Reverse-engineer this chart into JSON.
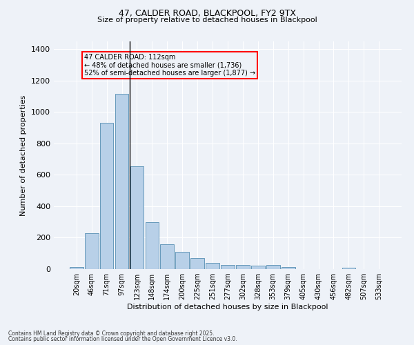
{
  "title1": "47, CALDER ROAD, BLACKPOOL, FY2 9TX",
  "title2": "Size of property relative to detached houses in Blackpool",
  "xlabel": "Distribution of detached houses by size in Blackpool",
  "ylabel": "Number of detached properties",
  "categories": [
    "20sqm",
    "46sqm",
    "71sqm",
    "97sqm",
    "123sqm",
    "148sqm",
    "174sqm",
    "200sqm",
    "225sqm",
    "251sqm",
    "277sqm",
    "302sqm",
    "328sqm",
    "353sqm",
    "379sqm",
    "405sqm",
    "430sqm",
    "456sqm",
    "482sqm",
    "507sqm",
    "533sqm"
  ],
  "values": [
    15,
    230,
    930,
    1115,
    655,
    300,
    160,
    110,
    70,
    40,
    25,
    25,
    20,
    25,
    15,
    0,
    0,
    0,
    10,
    0,
    0
  ],
  "bar_color": "#b8d0e8",
  "bar_edge_color": "#6699bb",
  "annotation_text": "47 CALDER ROAD: 112sqm\n← 48% of detached houses are smaller (1,736)\n52% of semi-detached houses are larger (1,877) →",
  "annotation_bar_index": 3,
  "vline_x": 3.5,
  "box_color": "red",
  "background_color": "#eef2f8",
  "grid_color": "#ffffff",
  "ylim": [
    0,
    1450
  ],
  "yticks": [
    0,
    200,
    400,
    600,
    800,
    1000,
    1200,
    1400
  ],
  "footnote1": "Contains HM Land Registry data © Crown copyright and database right 2025.",
  "footnote2": "Contains public sector information licensed under the Open Government Licence v3.0."
}
